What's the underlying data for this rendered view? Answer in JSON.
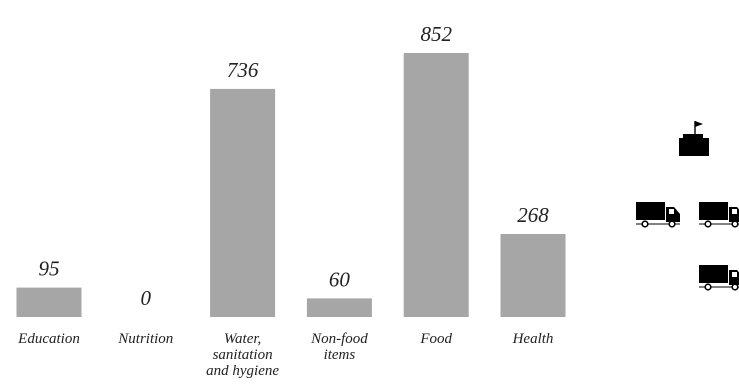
{
  "chart_data": {
    "type": "bar",
    "title": "",
    "xlabel": "",
    "ylabel": "",
    "categories": [
      [
        "Education"
      ],
      [
        "Nutrition"
      ],
      [
        "Water,",
        "sanitation",
        "and hygiene"
      ],
      [
        "Non-food",
        "items"
      ],
      [
        "Food"
      ],
      [
        "Health"
      ]
    ],
    "values": [
      95,
      0,
      736,
      60,
      852,
      268
    ],
    "value_labels": [
      "95",
      "0",
      "736",
      "60",
      "852",
      "268"
    ],
    "ylim": [
      0,
      852
    ],
    "grid": false,
    "bar_color": "#a6a6a6"
  },
  "side_icons": [
    {
      "name": "warehouse-flag-icon"
    },
    {
      "name": "truck-icon"
    },
    {
      "name": "truck-icon"
    },
    {
      "name": "truck-icon"
    }
  ]
}
